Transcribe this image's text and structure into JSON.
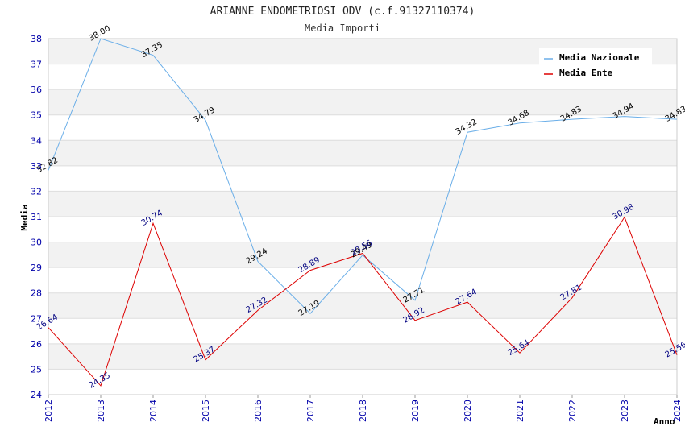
{
  "chart_data": {
    "type": "line",
    "title": "ARIANNE ENDOMETRIOSI ODV (c.f.91327110374)",
    "subtitle": "Media Importi",
    "xlabel": "Anno",
    "ylabel": "Media",
    "ylim": [
      24,
      38
    ],
    "y_ticks": [
      "24",
      "25",
      "26",
      "27",
      "28",
      "29",
      "30",
      "31",
      "32",
      "33",
      "34",
      "35",
      "36",
      "37",
      "38"
    ],
    "categories": [
      "2012",
      "2013",
      "2014",
      "2015",
      "2016",
      "2017",
      "2018",
      "2019",
      "2020",
      "2021",
      "2022",
      "2023",
      "2024"
    ],
    "legend_position": "top-right",
    "series": [
      {
        "name": "Media Nazionale",
        "color": "#6aaee8",
        "label_color": "#000000",
        "values": [
          32.82,
          38.0,
          37.35,
          34.79,
          29.24,
          27.19,
          29.49,
          27.71,
          34.32,
          34.68,
          34.83,
          34.94,
          34.83
        ],
        "labels": [
          "32.82",
          "38.00",
          "37.35",
          "34.79",
          "29.24",
          "27.19",
          "29.49",
          "27.71",
          "34.32",
          "34.68",
          "34.83",
          "34.94",
          "34.83"
        ]
      },
      {
        "name": "Media Ente",
        "color": "#dd0000",
        "label_color": "#000080",
        "values": [
          26.64,
          24.35,
          30.74,
          25.37,
          27.32,
          28.89,
          29.56,
          26.92,
          27.64,
          25.64,
          27.81,
          30.98,
          25.56
        ],
        "labels": [
          "26.64",
          "24.35",
          "30.74",
          "25.37",
          "27.32",
          "28.89",
          "29.56",
          "26.92",
          "27.64",
          "25.64",
          "27.81",
          "30.98",
          "25.56"
        ]
      }
    ]
  }
}
